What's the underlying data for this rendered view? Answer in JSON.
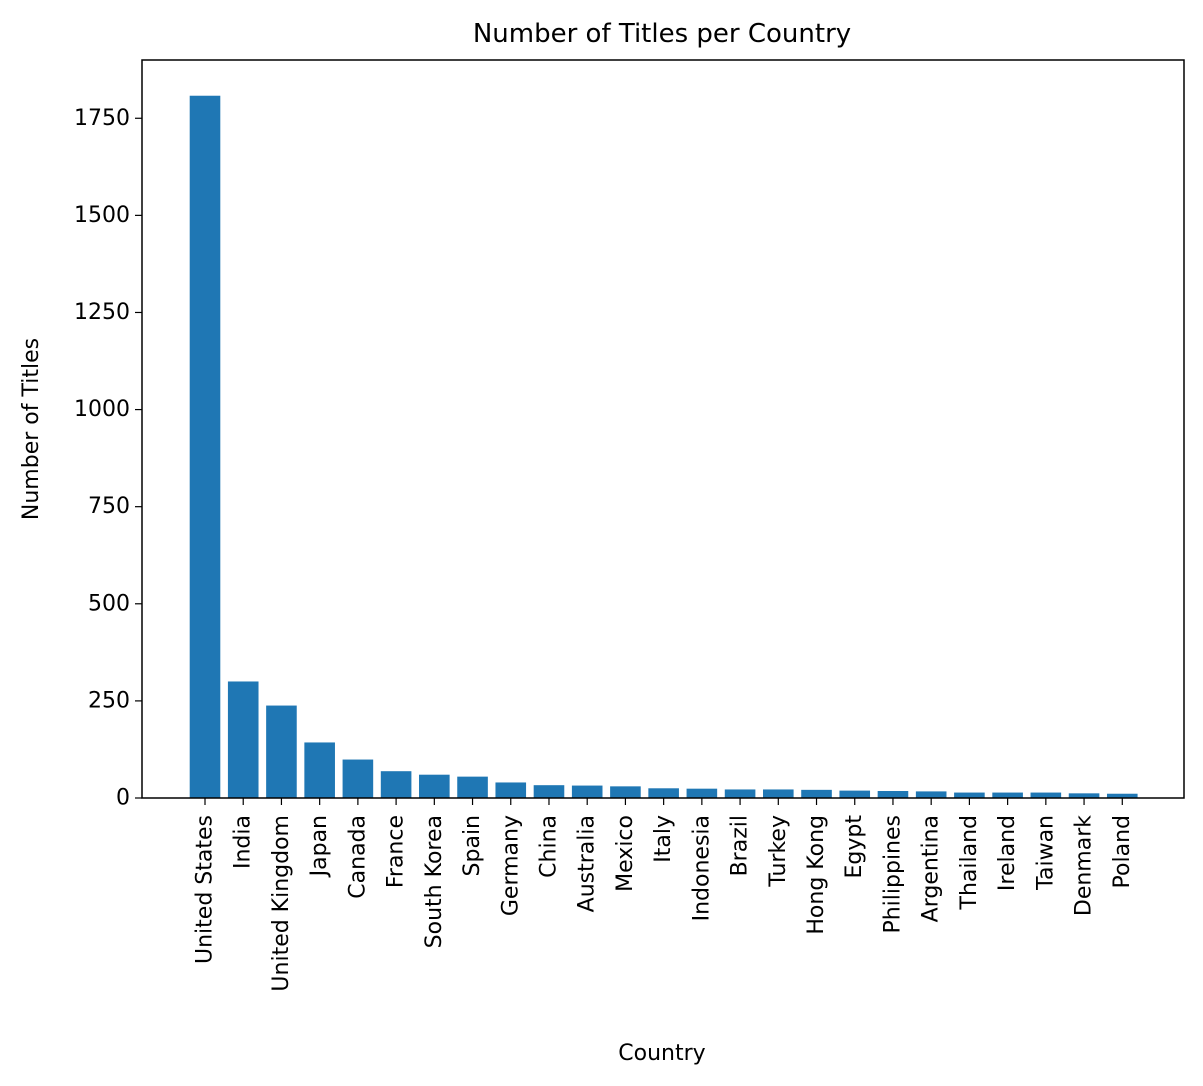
{
  "chart_data": {
    "type": "bar",
    "title": "Number of Titles per Country",
    "xlabel": "Country",
    "ylabel": "Number of Titles",
    "ylim": [
      0,
      1900
    ],
    "yticks": [
      0,
      250,
      500,
      750,
      1000,
      1250,
      1500,
      1750
    ],
    "grid": false,
    "categories": [
      "United States",
      "India",
      "United Kingdom",
      "Japan",
      "Canada",
      "France",
      "South Korea",
      "Spain",
      "Germany",
      "China",
      "Australia",
      "Mexico",
      "Italy",
      "Indonesia",
      "Brazil",
      "Turkey",
      "Hong Kong",
      "Egypt",
      "Philippines",
      "Argentina",
      "Thailand",
      "Ireland",
      "Taiwan",
      "Denmark",
      "Poland"
    ],
    "values": [
      1808,
      300,
      238,
      143,
      99,
      69,
      60,
      55,
      40,
      33,
      32,
      30,
      25,
      24,
      22,
      22,
      21,
      19,
      18,
      17,
      14,
      14,
      14,
      12,
      11
    ],
    "bar_color": "#1f77b4"
  }
}
